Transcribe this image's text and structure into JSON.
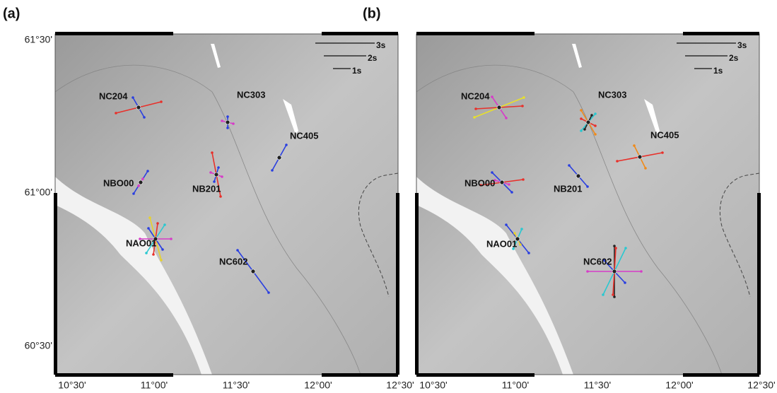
{
  "panels": [
    {
      "label": "(a)",
      "y_ticks": [
        "61°30'",
        "61°00'",
        "60°30'"
      ],
      "x_ticks": [
        "10°30'",
        "11°00'",
        "11°30'",
        "12°00'",
        "12°30'"
      ],
      "scale": [
        "3s",
        "2s",
        "1s"
      ],
      "stations": [
        "NC204",
        "NC303",
        "NC405",
        "NBO00",
        "NB201",
        "NAO01",
        "NC602"
      ]
    },
    {
      "label": "(b)",
      "x_ticks": [
        "10°30'",
        "11°00'",
        "11°30'",
        "12°00'",
        "12°30'"
      ],
      "scale": [
        "3s",
        "2s",
        "1s"
      ],
      "stations": [
        "NC204",
        "NC303",
        "NC405",
        "NBO00",
        "NB201",
        "NAO01",
        "NC602"
      ]
    }
  ]
}
